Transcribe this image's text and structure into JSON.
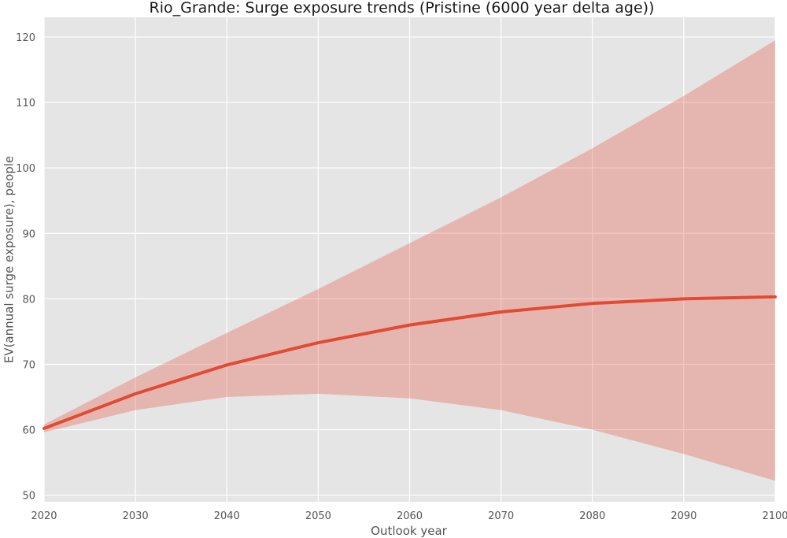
{
  "chart_data": {
    "type": "line",
    "title": "Rio_Grande: Surge exposure trends (Pristine (6000 year delta age))",
    "xlabel": "Outlook year",
    "ylabel": "EV(annual surge exposure), people",
    "xlim": [
      2020,
      2100
    ],
    "ylim": [
      49,
      123
    ],
    "xticks": [
      2020,
      2030,
      2040,
      2050,
      2060,
      2070,
      2080,
      2090,
      2100
    ],
    "yticks": [
      50,
      60,
      70,
      80,
      90,
      100,
      110,
      120
    ],
    "grid": true,
    "background": "#e5e5e5",
    "series": [
      {
        "x": [
          2020,
          2030,
          2040,
          2050,
          2060,
          2070,
          2080,
          2090,
          2100
        ],
        "values": [
          60.2,
          65.5,
          69.9,
          73.3,
          76.0,
          78.0,
          79.3,
          80.0,
          80.3
        ],
        "lower": [
          59.6,
          63.0,
          65.0,
          65.5,
          64.8,
          63.0,
          60.0,
          56.3,
          52.2
        ],
        "upper": [
          60.8,
          68.0,
          74.8,
          81.5,
          88.5,
          95.5,
          103.0,
          111.0,
          119.5
        ],
        "color": "#e24a33",
        "band_color": "#e24a33"
      }
    ]
  }
}
